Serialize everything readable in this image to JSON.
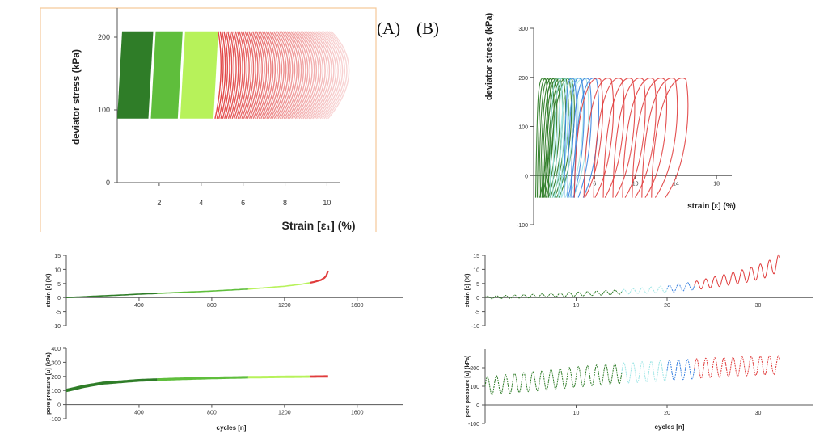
{
  "panel_labels": {
    "a": "(A)",
    "b": "(B)"
  },
  "colors": {
    "dark_green": "#2f7d28",
    "mid_green": "#5fbe3c",
    "light_green": "#b7f25a",
    "red": "#e03c3c",
    "cyan": "#9fe6e6",
    "blue": "#3a82e0",
    "frame": "#f5c99a"
  },
  "chart_data": [
    {
      "id": "A_stress_strain",
      "type": "line",
      "xlabel": "Strain [ε₁] (%)",
      "ylabel": "deviator stress (kPa)",
      "xlim": [
        0,
        10.6
      ],
      "ylim": [
        0,
        240
      ],
      "xticks": [
        2,
        4,
        6,
        8,
        10
      ],
      "yticks": [
        0,
        100,
        200
      ],
      "stress_range": [
        88,
        208
      ],
      "bands": [
        {
          "color": "dark_green",
          "strain": [
            0,
            1.6
          ]
        },
        {
          "color": "mid_green",
          "strain": [
            1.6,
            3.0
          ]
        },
        {
          "color": "light_green",
          "strain": [
            3.0,
            4.7
          ]
        },
        {
          "color": "red",
          "strain": [
            4.7,
            10.2
          ]
        }
      ]
    },
    {
      "id": "B_stress_strain",
      "type": "line",
      "xlabel": "strain [ε] (%)",
      "ylabel": "deviator stress (kPa)",
      "xlim": [
        0,
        19.5
      ],
      "ylim": [
        -100,
        300
      ],
      "xticks": [
        6,
        10,
        14,
        18
      ],
      "yticks": [
        -100,
        0,
        100,
        200,
        300
      ],
      "loops": [
        {
          "color": "dark_green",
          "count": 10,
          "strain_start": [
            0.2,
            1.6
          ]
        },
        {
          "color": "cyan",
          "count": 6,
          "strain_start": [
            1.6,
            3.0
          ]
        },
        {
          "color": "blue",
          "count": 4,
          "strain_start": [
            3.0,
            4.0
          ]
        },
        {
          "color": "red",
          "count": 9,
          "strain_start": [
            4.0,
            11.6
          ]
        }
      ],
      "stress_range": [
        -45,
        205
      ]
    },
    {
      "id": "A_strain_cycles",
      "type": "line",
      "ylabel": "strain [ε] (%)",
      "xlim": [
        0,
        1850
      ],
      "ylim": [
        -10,
        15
      ],
      "xticks": [
        400,
        800,
        1200,
        1600
      ],
      "yticks": [
        -10,
        -5,
        0,
        5,
        10,
        15
      ],
      "segments": [
        {
          "color": "dark_green",
          "x": [
            0,
            500
          ]
        },
        {
          "color": "mid_green",
          "x": [
            500,
            1000
          ]
        },
        {
          "color": "light_green",
          "x": [
            1000,
            1340
          ]
        },
        {
          "color": "red",
          "x": [
            1340,
            1440
          ]
        }
      ],
      "curve": [
        [
          0,
          0
        ],
        [
          400,
          1.2
        ],
        [
          800,
          2.3
        ],
        [
          1000,
          3
        ],
        [
          1200,
          4
        ],
        [
          1300,
          4.8
        ],
        [
          1360,
          5.5
        ],
        [
          1400,
          6.2
        ],
        [
          1420,
          7
        ],
        [
          1435,
          8.2
        ],
        [
          1440,
          9.5
        ]
      ]
    },
    {
      "id": "A_pore_cycles",
      "type": "area",
      "xlabel": "cycles [n]",
      "ylabel": "pore pressure [u] (kPa)",
      "xlim": [
        0,
        1850
      ],
      "ylim": [
        -100,
        400
      ],
      "xticks": [
        400,
        800,
        1200,
        1600
      ],
      "yticks": [
        -100,
        0,
        100,
        200,
        300,
        400
      ],
      "segments": [
        {
          "color": "dark_green",
          "x": [
            0,
            500
          ]
        },
        {
          "color": "mid_green",
          "x": [
            500,
            1000
          ]
        },
        {
          "color": "light_green",
          "x": [
            1000,
            1340
          ]
        },
        {
          "color": "red",
          "x": [
            1340,
            1440
          ]
        }
      ],
      "mean_curve": [
        [
          0,
          100
        ],
        [
          100,
          130
        ],
        [
          200,
          152
        ],
        [
          400,
          172
        ],
        [
          600,
          182
        ],
        [
          800,
          189
        ],
        [
          1000,
          194
        ],
        [
          1200,
          197
        ],
        [
          1440,
          200
        ]
      ],
      "band_halfwidth": [
        [
          0,
          12
        ],
        [
          300,
          10
        ],
        [
          1440,
          8
        ]
      ]
    },
    {
      "id": "B_strain_cycles",
      "type": "line",
      "ylabel": "strain [ε] (%)",
      "xlim": [
        0,
        36
      ],
      "ylim": [
        -10,
        15
      ],
      "xticks": [
        10,
        20,
        30
      ],
      "yticks": [
        -10,
        -5,
        0,
        5,
        10,
        15
      ],
      "segments": [
        {
          "color": "dark_green",
          "x": [
            0,
            15
          ]
        },
        {
          "color": "cyan",
          "x": [
            15,
            20
          ]
        },
        {
          "color": "blue",
          "x": [
            20,
            23
          ]
        },
        {
          "color": "red",
          "x": [
            23,
            32.4
          ]
        }
      ],
      "mean_curve": [
        [
          0,
          0
        ],
        [
          5,
          0.5
        ],
        [
          10,
          1.2
        ],
        [
          15,
          2
        ],
        [
          20,
          3
        ],
        [
          23,
          4.2
        ],
        [
          26,
          6
        ],
        [
          29,
          8
        ],
        [
          31,
          10
        ],
        [
          32.4,
          12.5
        ]
      ],
      "amplitude_curve": [
        [
          0,
          0.5
        ],
        [
          15,
          0.8
        ],
        [
          23,
          1.5
        ],
        [
          29,
          2.5
        ],
        [
          32.4,
          3
        ]
      ]
    },
    {
      "id": "B_pore_cycles",
      "type": "line",
      "xlabel": "cycles [n]",
      "ylabel": "pore pressure [u] (kPa)",
      "xlim": [
        0,
        36
      ],
      "ylim": [
        -100,
        300
      ],
      "xticks": [
        10,
        20,
        30
      ],
      "yticks": [
        -100,
        0,
        100,
        200
      ],
      "segments": [
        {
          "color": "dark_green",
          "x": [
            0,
            15
          ]
        },
        {
          "color": "cyan",
          "x": [
            15,
            20
          ]
        },
        {
          "color": "blue",
          "x": [
            20,
            23
          ]
        },
        {
          "color": "red",
          "x": [
            23,
            32.4
          ]
        }
      ],
      "mean_curve": [
        [
          0,
          100
        ],
        [
          5,
          125
        ],
        [
          10,
          150
        ],
        [
          15,
          170
        ],
        [
          20,
          185
        ],
        [
          25,
          200
        ],
        [
          30,
          210
        ],
        [
          32.4,
          215
        ]
      ],
      "amplitude_curve": [
        [
          0,
          50
        ],
        [
          10,
          55
        ],
        [
          20,
          55
        ],
        [
          32.4,
          50
        ]
      ]
    }
  ]
}
